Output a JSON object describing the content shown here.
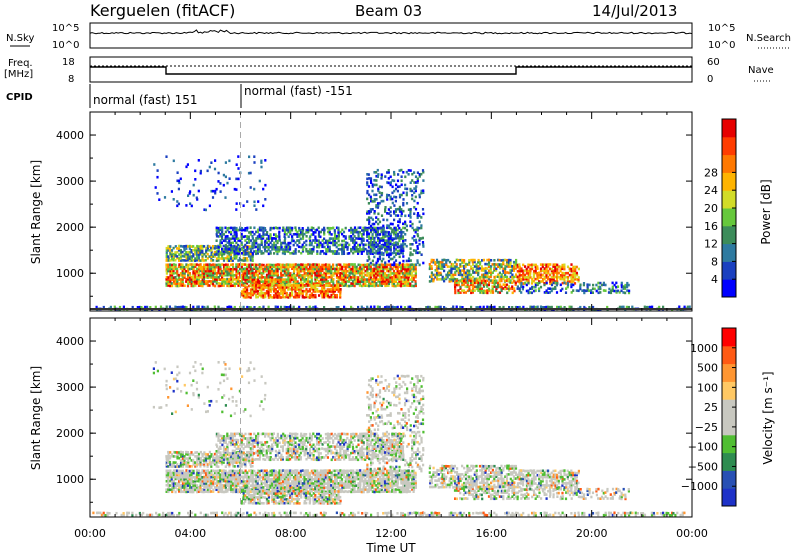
{
  "header": {
    "station": "Kerguelen (fitACF)",
    "beam": "Beam 03",
    "date": "14/Jul/2013"
  },
  "status_panels": {
    "nsky_label": "N.Sky",
    "nsky_ticks": [
      "10^5",
      "10^0"
    ],
    "nsearch_label": "N.Search",
    "freq_label_1": "Freq.",
    "freq_label_2": "[MHz]",
    "freq_ticks": [
      "18",
      "8"
    ],
    "nave_label": "Nave",
    "nave_ticks": [
      "60",
      "0"
    ],
    "cpid_label": "CPID",
    "cpid_segments": [
      {
        "label": "normal (fast) 151",
        "start_hour": 0,
        "end_hour": 6
      },
      {
        "label": "normal (fast) -151",
        "start_hour": 6,
        "end_hour": 24
      }
    ]
  },
  "chart_data": [
    {
      "type": "heatmap",
      "name": "power",
      "ylabel": "Slant Range [km]",
      "yticks": [
        "1000",
        "2000",
        "3000",
        "4000"
      ],
      "ylim": [
        180,
        4500
      ],
      "xlim": [
        0,
        24
      ],
      "colorbar_label": "Power [dB]",
      "colorbar_ticks": [
        "4",
        "8",
        "12",
        "16",
        "20",
        "24",
        "28"
      ],
      "colors": [
        "#0000ff",
        "#1a40c0",
        "#2e7aa0",
        "#3c8c5a",
        "#66c83c",
        "#d2dc28",
        "#ffb400",
        "#ff7800",
        "#ff3c00",
        "#e60000"
      ]
    },
    {
      "type": "heatmap",
      "name": "velocity",
      "ylabel": "Slant Range [km]",
      "yticks": [
        "1000",
        "2000",
        "3000",
        "4000"
      ],
      "ylim": [
        180,
        4500
      ],
      "xlim": [
        0,
        24
      ],
      "xlabel": "Time UT",
      "xticks": [
        "00:00",
        "04:00",
        "08:00",
        "12:00",
        "16:00",
        "20:00",
        "00:00"
      ],
      "colorbar_label": "Velocity [m s⁻¹]",
      "colorbar_ticks": [
        "1000",
        "500",
        "100",
        "25",
        "−25",
        "−100",
        "−500",
        "−1000"
      ],
      "colors": [
        "#1e32c8",
        "#2850b4",
        "#2e8c50",
        "#50be32",
        "#c8c8c0",
        "#c8c8c0",
        "#ffc864",
        "#ff9632",
        "#ff5a14",
        "#ff0000"
      ]
    }
  ]
}
